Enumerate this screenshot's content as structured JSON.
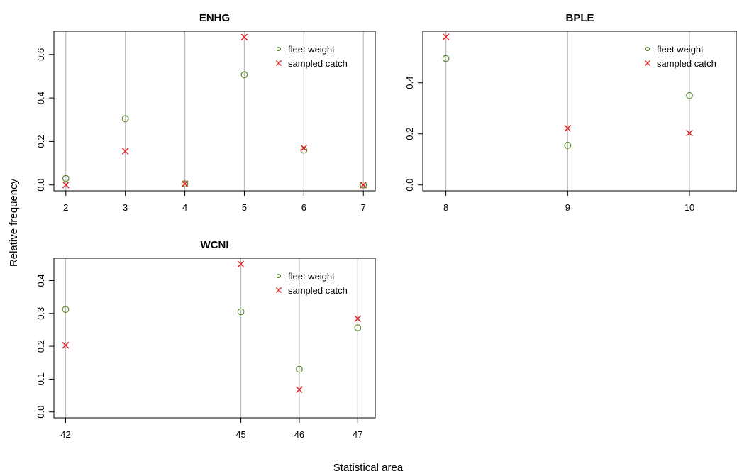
{
  "figure": {
    "xlabel": "Statistical area",
    "ylabel": "Relative frequency",
    "colors": {
      "fleet_weight": "#5b8a2e",
      "sampled_catch": "#e01b1b",
      "gridline": "#bdbdbd"
    },
    "legend_marker_names": {
      "fleet_weight": "circle-marker",
      "sampled_catch": "x-marker"
    }
  },
  "chart_data": [
    {
      "type": "scatter",
      "title": "ENHG",
      "categories": [
        "2",
        "3",
        "4",
        "5",
        "6",
        "7"
      ],
      "series": [
        {
          "name": "fleet weight",
          "marker": "circle",
          "values": [
            0.03,
            0.305,
            0.005,
            0.507,
            0.16,
            0.0
          ]
        },
        {
          "name": "sampled catch",
          "marker": "x",
          "values": [
            0.0,
            0.155,
            0.005,
            0.68,
            0.17,
            0.0
          ]
        }
      ],
      "yticks": [
        0.0,
        0.2,
        0.4,
        0.6
      ],
      "ytick_labels": [
        "0.0",
        "0.2",
        "0.4",
        "0.6"
      ],
      "ylim": [
        -0.027,
        0.707
      ],
      "legend_position": "top-right",
      "grid": "vertical lines at categories"
    },
    {
      "type": "scatter",
      "title": "BPLE",
      "categories": [
        "8",
        "9",
        "10"
      ],
      "series": [
        {
          "name": "fleet weight",
          "marker": "circle",
          "values": [
            0.495,
            0.155,
            0.35
          ]
        },
        {
          "name": "sampled catch",
          "marker": "x",
          "values": [
            0.58,
            0.222,
            0.203
          ]
        }
      ],
      "yticks": [
        0.0,
        0.2,
        0.4
      ],
      "ytick_labels": [
        "0.0",
        "0.2",
        "0.4"
      ],
      "ylim": [
        -0.023,
        0.602
      ],
      "legend_position": "top-right",
      "grid": "vertical lines at categories"
    },
    {
      "type": "scatter",
      "title": "WCNI",
      "categories": [
        "42",
        "45",
        "46",
        "47"
      ],
      "series": [
        {
          "name": "fleet weight",
          "marker": "circle",
          "values": [
            0.312,
            0.305,
            0.13,
            0.256
          ]
        },
        {
          "name": "sampled catch",
          "marker": "x",
          "values": [
            0.203,
            0.45,
            0.068,
            0.284
          ]
        }
      ],
      "yticks": [
        0.0,
        0.1,
        0.2,
        0.3,
        0.4
      ],
      "ytick_labels": [
        "0.0",
        "0.1",
        "0.2",
        "0.3",
        "0.4"
      ],
      "ylim": [
        -0.018,
        0.468
      ],
      "legend_position": "top-right",
      "grid": "vertical lines at categories"
    }
  ]
}
